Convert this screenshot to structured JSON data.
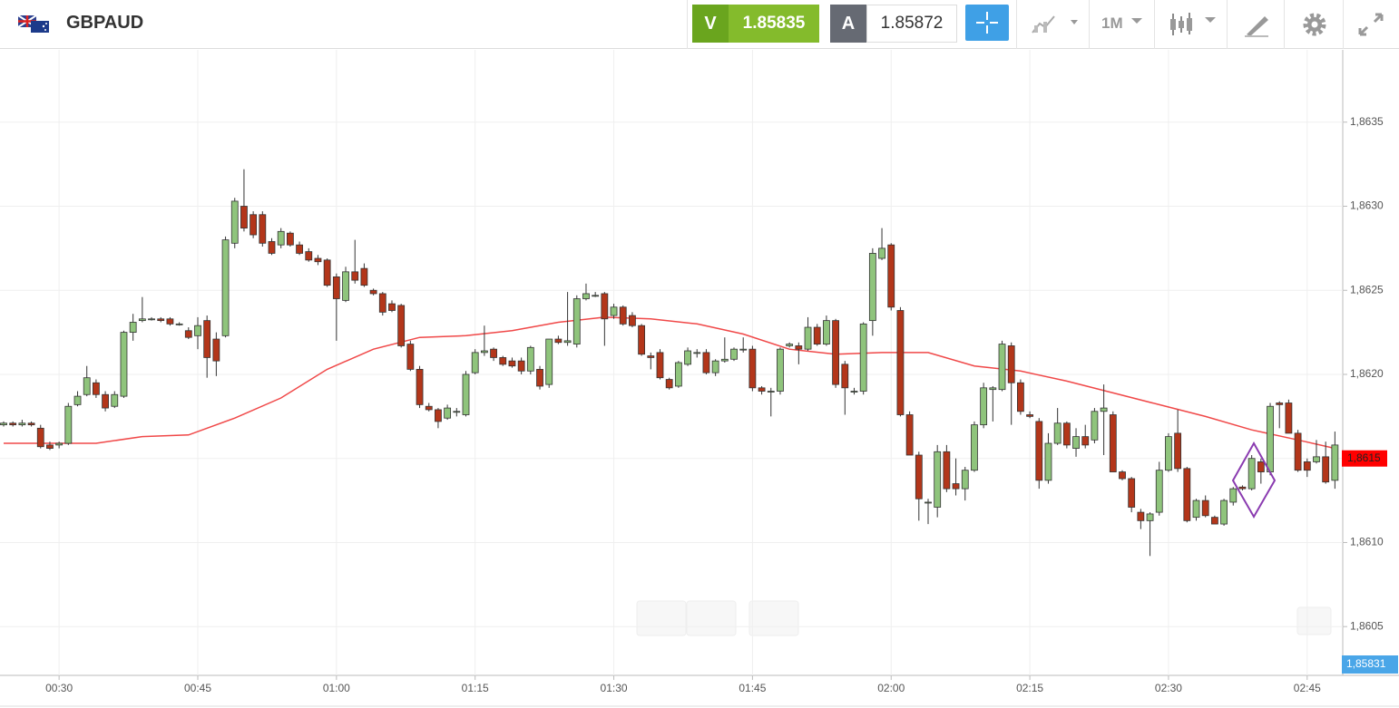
{
  "header": {
    "symbol": "GBPAUD",
    "sell_label": "V",
    "sell_price": "1.85835",
    "buy_label": "A",
    "buy_price": "1.85872",
    "timeframe": "1M"
  },
  "chart_data": {
    "type": "candlestick",
    "up_color": "#8fc47c",
    "down_color": "#b3361a",
    "categories": [
      null,
      null,
      null,
      null,
      null,
      null,
      "00:30",
      null,
      null,
      null,
      null,
      null,
      null,
      null,
      null,
      null,
      null,
      null,
      null,
      null,
      null,
      "00:45",
      null,
      null,
      null,
      null,
      null,
      null,
      null,
      null,
      null,
      null,
      null,
      null,
      null,
      null,
      "01:00",
      null,
      null,
      null,
      null,
      null,
      null,
      null,
      null,
      null,
      null,
      null,
      null,
      null,
      null,
      "01:15",
      null,
      null,
      null,
      null,
      null,
      null,
      null,
      null,
      null,
      null,
      null,
      null,
      null,
      null,
      "01:30",
      null,
      null,
      null,
      null,
      null,
      null,
      null,
      null,
      null,
      null,
      null,
      null,
      null,
      null,
      "01:45",
      null,
      null,
      null,
      null,
      null,
      null,
      null,
      null,
      null,
      null,
      null,
      null,
      null,
      null,
      "02:00",
      null,
      null,
      null,
      null,
      null,
      null,
      null,
      null,
      null,
      null,
      null,
      null,
      null,
      null,
      "02:15",
      null,
      null,
      null,
      null,
      null,
      null,
      null,
      null,
      null,
      null,
      null,
      null,
      null,
      null,
      "02:30",
      null,
      null,
      null,
      null,
      null,
      null,
      null,
      null,
      null,
      null,
      null,
      null,
      null,
      null,
      "02:45",
      null,
      null,
      null
    ],
    "candles": [
      [
        1.8617,
        1.86172,
        1.86169,
        1.86171
      ],
      [
        1.86171,
        1.86172,
        1.86169,
        1.8617
      ],
      [
        1.8617,
        1.86173,
        1.86169,
        1.86171
      ],
      [
        1.86171,
        1.86172,
        1.86169,
        1.8617
      ],
      [
        1.86168,
        1.8617,
        1.86156,
        1.86157
      ],
      [
        1.86158,
        1.8616,
        1.86155,
        1.86156
      ],
      [
        1.86158,
        1.8616,
        1.86156,
        1.86159
      ],
      [
        1.86159,
        1.86183,
        1.86158,
        1.86181
      ],
      [
        1.86182,
        1.8619,
        1.86181,
        1.86187
      ],
      [
        1.86188,
        1.86205,
        1.86187,
        1.86198
      ],
      [
        1.86195,
        1.86197,
        1.86186,
        1.86188
      ],
      [
        1.86188,
        1.8619,
        1.86178,
        1.8618
      ],
      [
        1.86181,
        1.8619,
        1.8618,
        1.86188
      ],
      [
        1.86187,
        1.86226,
        1.86186,
        1.86225
      ],
      [
        1.86225,
        1.86236,
        1.8622,
        1.86231
      ],
      [
        1.86232,
        1.86246,
        1.86231,
        1.86233
      ],
      [
        1.86233,
        1.86234,
        1.86232,
        1.86233
      ],
      [
        1.86233,
        1.86234,
        1.86231,
        1.86232
      ],
      [
        1.86233,
        1.86234,
        1.86229,
        1.8623
      ],
      [
        1.8623,
        1.86231,
        1.86229,
        1.8623
      ],
      [
        1.86226,
        1.86228,
        1.86221,
        1.86222
      ],
      [
        1.86223,
        1.86234,
        1.86215,
        1.86229
      ],
      [
        1.86232,
        1.86235,
        1.86198,
        1.8621
      ],
      [
        1.86221,
        1.86225,
        1.86199,
        1.86208
      ],
      [
        1.86223,
        1.86282,
        1.86222,
        1.8628
      ],
      [
        1.86278,
        1.86305,
        1.86275,
        1.86303
      ],
      [
        1.863,
        1.86322,
        1.86285,
        1.86287
      ],
      [
        1.86295,
        1.86297,
        1.86281,
        1.86283
      ],
      [
        1.86295,
        1.86297,
        1.86276,
        1.86278
      ],
      [
        1.86279,
        1.86281,
        1.86271,
        1.86272
      ],
      [
        1.86277,
        1.86287,
        1.86275,
        1.86285
      ],
      [
        1.86284,
        1.86285,
        1.86276,
        1.86277
      ],
      [
        1.86277,
        1.86279,
        1.86271,
        1.86272
      ],
      [
        1.86273,
        1.86275,
        1.86267,
        1.86268
      ],
      [
        1.86269,
        1.86271,
        1.86265,
        1.86267
      ],
      [
        1.86268,
        1.86269,
        1.86252,
        1.86253
      ],
      [
        1.86258,
        1.8626,
        1.8622,
        1.86245
      ],
      [
        1.86244,
        1.86264,
        1.86243,
        1.86261
      ],
      [
        1.86261,
        1.8628,
        1.86254,
        1.86256
      ],
      [
        1.86263,
        1.86266,
        1.86252,
        1.86253
      ],
      [
        1.8625,
        1.86251,
        1.86247,
        1.86248
      ],
      [
        1.86248,
        1.86249,
        1.86235,
        1.86237
      ],
      [
        1.86242,
        1.86244,
        1.86237,
        1.86238
      ],
      [
        1.86241,
        1.86242,
        1.86216,
        1.86217
      ],
      [
        1.86218,
        1.8622,
        1.86202,
        1.86203
      ],
      [
        1.86203,
        1.86205,
        1.8618,
        1.86182
      ],
      [
        1.86181,
        1.86183,
        1.86178,
        1.86179
      ],
      [
        1.86179,
        1.8618,
        1.86168,
        1.86172
      ],
      [
        1.86174,
        1.86182,
        1.86173,
        1.8618
      ],
      [
        1.86178,
        1.8618,
        1.86175,
        1.86178
      ],
      [
        1.86176,
        1.86202,
        1.86175,
        1.862
      ],
      [
        1.86201,
        1.86215,
        1.862,
        1.86213
      ],
      [
        1.86213,
        1.86229,
        1.86211,
        1.86214
      ],
      [
        1.86215,
        1.86216,
        1.86208,
        1.8621
      ],
      [
        1.8621,
        1.86211,
        1.86205,
        1.86206
      ],
      [
        1.86208,
        1.8621,
        1.86204,
        1.86205
      ],
      [
        1.86208,
        1.8621,
        1.862,
        1.86202
      ],
      [
        1.86202,
        1.86217,
        1.862,
        1.86216
      ],
      [
        1.86203,
        1.86205,
        1.86191,
        1.86193
      ],
      [
        1.86194,
        1.86221,
        1.86192,
        1.86221
      ],
      [
        1.86221,
        1.86223,
        1.86218,
        1.86219
      ],
      [
        1.86219,
        1.86249,
        1.86217,
        1.8622
      ],
      [
        1.86218,
        1.86247,
        1.86216,
        1.86245
      ],
      [
        1.86245,
        1.86254,
        1.86244,
        1.86248
      ],
      [
        1.86247,
        1.86249,
        1.86246,
        1.86247
      ],
      [
        1.86248,
        1.86249,
        1.86217,
        1.86233
      ],
      [
        1.86235,
        1.86242,
        1.86233,
        1.8624
      ],
      [
        1.8624,
        1.86241,
        1.86229,
        1.8623
      ],
      [
        1.86235,
        1.86237,
        1.86228,
        1.86229
      ],
      [
        1.86229,
        1.8623,
        1.86211,
        1.86212
      ],
      [
        1.86211,
        1.86213,
        1.86203,
        1.8621
      ],
      [
        1.86213,
        1.86215,
        1.86197,
        1.86198
      ],
      [
        1.86197,
        1.86198,
        1.86191,
        1.86192
      ],
      [
        1.86193,
        1.86208,
        1.86192,
        1.86207
      ],
      [
        1.86206,
        1.86216,
        1.86205,
        1.86214
      ],
      [
        1.86213,
        1.86215,
        1.8621,
        1.86213
      ],
      [
        1.86213,
        1.86215,
        1.862,
        1.86201
      ],
      [
        1.86201,
        1.86209,
        1.86199,
        1.86208
      ],
      [
        1.86208,
        1.86222,
        1.86207,
        1.86209
      ],
      [
        1.86209,
        1.86216,
        1.86208,
        1.86215
      ],
      [
        1.86215,
        1.86222,
        1.86213,
        1.86215
      ],
      [
        1.86215,
        1.86217,
        1.8619,
        1.86192
      ],
      [
        1.86192,
        1.86193,
        1.86188,
        1.8619
      ],
      [
        1.8619,
        1.86192,
        1.86175,
        1.8619
      ],
      [
        1.8619,
        1.86216,
        1.86188,
        1.86215
      ],
      [
        1.86217,
        1.86219,
        1.86216,
        1.86218
      ],
      [
        1.86217,
        1.86219,
        1.86206,
        1.86215
      ],
      [
        1.86215,
        1.86234,
        1.86214,
        1.86228
      ],
      [
        1.86228,
        1.8623,
        1.86217,
        1.86218
      ],
      [
        1.86218,
        1.86235,
        1.86217,
        1.86232
      ],
      [
        1.86232,
        1.86233,
        1.86192,
        1.86194
      ],
      [
        1.86206,
        1.86208,
        1.86176,
        1.86192
      ],
      [
        1.8619,
        1.86192,
        1.86188,
        1.8619
      ],
      [
        1.8619,
        1.86231,
        1.86188,
        1.8623
      ],
      [
        1.86232,
        1.86275,
        1.86223,
        1.86272
      ],
      [
        1.86269,
        1.86287,
        1.86268,
        1.86275
      ],
      [
        1.86277,
        1.86278,
        1.86238,
        1.8624
      ],
      [
        1.86238,
        1.8624,
        1.86175,
        1.86176
      ],
      [
        1.86176,
        1.86178,
        1.86152,
        1.86152
      ],
      [
        1.86152,
        1.86154,
        1.86113,
        1.86126
      ],
      [
        1.86124,
        1.86126,
        1.86111,
        1.86124
      ],
      [
        1.86121,
        1.86158,
        1.86115,
        1.86154
      ],
      [
        1.86154,
        1.86158,
        1.8613,
        1.86132
      ],
      [
        1.86135,
        1.8615,
        1.86128,
        1.86132
      ],
      [
        1.86132,
        1.86145,
        1.86125,
        1.86143
      ],
      [
        1.86143,
        1.86172,
        1.86142,
        1.8617
      ],
      [
        1.8617,
        1.86195,
        1.86168,
        1.86192
      ],
      [
        1.86191,
        1.86193,
        1.86172,
        1.86192
      ],
      [
        1.86191,
        1.8622,
        1.8619,
        1.86218
      ],
      [
        1.86217,
        1.86219,
        1.8617,
        1.86195
      ],
      [
        1.86195,
        1.86197,
        1.86176,
        1.86178
      ],
      [
        1.86176,
        1.86178,
        1.86174,
        1.86175
      ],
      [
        1.86172,
        1.86174,
        1.86132,
        1.86137
      ],
      [
        1.86137,
        1.86165,
        1.86135,
        1.86159
      ],
      [
        1.86159,
        1.8618,
        1.86158,
        1.86171
      ],
      [
        1.86171,
        1.86172,
        1.86156,
        1.86158
      ],
      [
        1.86156,
        1.86168,
        1.86151,
        1.86163
      ],
      [
        1.86163,
        1.8617,
        1.86156,
        1.86158
      ],
      [
        1.86161,
        1.8618,
        1.86159,
        1.86178
      ],
      [
        1.86178,
        1.86194,
        1.86152,
        1.8618
      ],
      [
        1.86176,
        1.86178,
        1.86142,
        1.86142
      ],
      [
        1.86142,
        1.86143,
        1.86137,
        1.86138
      ],
      [
        1.86138,
        1.86139,
        1.86118,
        1.86121
      ],
      [
        1.86118,
        1.8612,
        1.86108,
        1.86113
      ],
      [
        1.86113,
        1.86118,
        1.86092,
        1.86117
      ],
      [
        1.86118,
        1.86148,
        1.86116,
        1.86143
      ],
      [
        1.86143,
        1.86165,
        1.86142,
        1.86163
      ],
      [
        1.86165,
        1.86179,
        1.86142,
        1.86144
      ],
      [
        1.86144,
        1.86145,
        1.86112,
        1.86113
      ],
      [
        1.86115,
        1.86126,
        1.86113,
        1.86125
      ],
      [
        1.86125,
        1.86128,
        1.86115,
        1.86116
      ],
      [
        1.86115,
        1.86116,
        1.86111,
        1.86111
      ],
      [
        1.86111,
        1.86126,
        1.8611,
        1.86125
      ],
      [
        1.86124,
        1.86133,
        1.86122,
        1.86132
      ],
      [
        1.86133,
        1.86134,
        1.86131,
        1.86132
      ],
      [
        1.86132,
        1.86152,
        1.86131,
        1.8615
      ],
      [
        1.86148,
        1.8615,
        1.86135,
        1.86142
      ],
      [
        1.86142,
        1.86183,
        1.8614,
        1.86181
      ],
      [
        1.86183,
        1.86184,
        1.86168,
        1.86182
      ],
      [
        1.86183,
        1.86185,
        1.86165,
        1.86165
      ],
      [
        1.86165,
        1.86167,
        1.86142,
        1.86143
      ],
      [
        1.86148,
        1.8615,
        1.86139,
        1.86143
      ],
      [
        1.86148,
        1.86161,
        1.86147,
        1.86151
      ],
      [
        1.86151,
        1.8616,
        1.86135,
        1.86136
      ],
      [
        1.86137,
        1.86166,
        1.86132,
        1.86158
      ]
    ],
    "ma": {
      "color": "#f04848",
      "x": [
        0,
        5,
        10,
        15,
        20,
        25,
        30,
        35,
        40,
        45,
        50,
        55,
        60,
        65,
        70,
        75,
        80,
        85,
        90,
        95,
        100,
        105,
        110,
        115,
        120,
        125,
        130,
        135,
        140,
        144
      ],
      "values": [
        1.86159,
        1.86159,
        1.86159,
        1.86163,
        1.86164,
        1.86174,
        1.86186,
        1.86203,
        1.86215,
        1.86222,
        1.86223,
        1.86226,
        1.86231,
        1.86234,
        1.86233,
        1.8623,
        1.86224,
        1.86215,
        1.86212,
        1.86213,
        1.86213,
        1.86205,
        1.86202,
        1.86196,
        1.86189,
        1.86182,
        1.86175,
        1.86167,
        1.86161,
        1.86156
      ]
    },
    "ylim": [
      1.86021,
      1.86393
    ],
    "yticks": [
      {
        "value": 1.8605,
        "label": "1,8605"
      },
      {
        "value": 1.861,
        "label": "1,8610"
      },
      {
        "value": 1.8615,
        "label": "1,8615"
      },
      {
        "value": 1.862,
        "label": "1,8620"
      },
      {
        "value": 1.8625,
        "label": "1,8625"
      },
      {
        "value": 1.863,
        "label": "1,8630"
      },
      {
        "value": 1.8635,
        "label": "1,8635"
      }
    ],
    "grid": true,
    "ma_tag": {
      "value": 1.8615,
      "label": "1,8615"
    },
    "price_tag": "1,85831"
  }
}
